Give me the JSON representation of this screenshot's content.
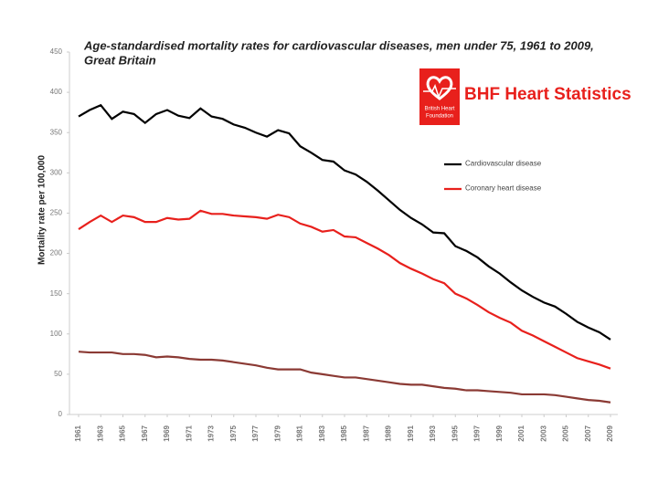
{
  "chart_data": {
    "type": "line",
    "title": [
      "Age-standardised  mortality rates for cardiovascular diseases, men under 75, 1961 to 2009,",
      "Great Britain"
    ],
    "y_label": "Mortality rate per 100,000",
    "x": [
      1961,
      1962,
      1963,
      1964,
      1965,
      1966,
      1967,
      1968,
      1969,
      1970,
      1971,
      1972,
      1973,
      1974,
      1975,
      1976,
      1977,
      1978,
      1979,
      1980,
      1981,
      1982,
      1983,
      1984,
      1985,
      1986,
      1987,
      1988,
      1989,
      1990,
      1991,
      1992,
      1993,
      1994,
      1995,
      1996,
      1997,
      1998,
      1999,
      2000,
      2001,
      2002,
      2003,
      2004,
      2005,
      2006,
      2007,
      2008,
      2009
    ],
    "series": [
      {
        "name": "Cardiovascular disease",
        "color": "#000000",
        "values": [
          370,
          378,
          384,
          367,
          376,
          373,
          362,
          373,
          378,
          371,
          368,
          380,
          370,
          367,
          360,
          356,
          350,
          345,
          353,
          349,
          333,
          325,
          316,
          314,
          303,
          298,
          289,
          278,
          266,
          254,
          244,
          236,
          226,
          225,
          209,
          203,
          195,
          184,
          175,
          164,
          154,
          146,
          139,
          134,
          125,
          115,
          108,
          102,
          93
        ]
      },
      {
        "name": "Coronary heart disease",
        "color": "#e8201c",
        "values": [
          230,
          239,
          247,
          239,
          247,
          245,
          239,
          239,
          244,
          242,
          243,
          253,
          249,
          249,
          247,
          246,
          245,
          243,
          248,
          245,
          237,
          233,
          227,
          229,
          221,
          220,
          213,
          206,
          198,
          188,
          181,
          175,
          168,
          163,
          150,
          144,
          136,
          127,
          120,
          114,
          104,
          98,
          91,
          84,
          77,
          70,
          66,
          62,
          57
        ]
      },
      {
        "color": "#8b3a34",
        "values": [
          78,
          77,
          77,
          77,
          75,
          75,
          74,
          71,
          72,
          71,
          69,
          68,
          68,
          67,
          65,
          63,
          61,
          58,
          56,
          56,
          56,
          52,
          50,
          48,
          46,
          46,
          44,
          42,
          40,
          38,
          37,
          37,
          35,
          33,
          32,
          30,
          30,
          29,
          28,
          27,
          25,
          25,
          25,
          24,
          22,
          20,
          18,
          17,
          15
        ]
      }
    ],
    "xlim": [
      1961,
      2009
    ],
    "xticks": [
      1961,
      1963,
      1965,
      1967,
      1969,
      1971,
      1973,
      1975,
      1977,
      1979,
      1981,
      1983,
      1985,
      1987,
      1989,
      1991,
      1993,
      1995,
      1997,
      1999,
      2001,
      2003,
      2005,
      2007,
      2009
    ],
    "ylim": [
      0,
      450
    ],
    "yticks": [
      0,
      50,
      100,
      150,
      200,
      250,
      300,
      350,
      400,
      450
    ],
    "grid": false,
    "legend": "right"
  },
  "logo": {
    "badge": [
      "British Heart",
      "Foundation"
    ],
    "text": "BHF Heart Statistics"
  }
}
